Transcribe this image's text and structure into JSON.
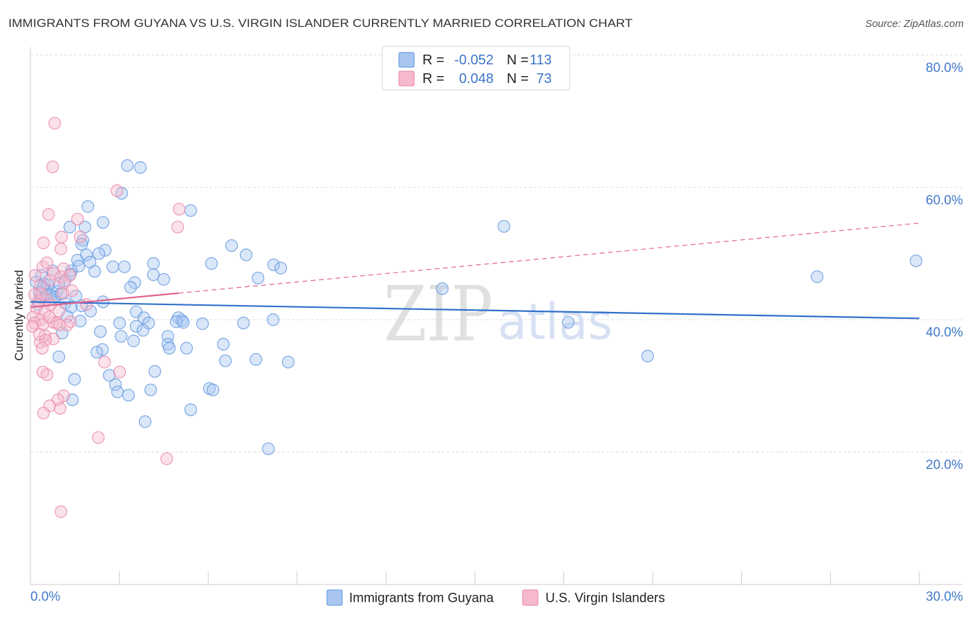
{
  "source": "Source: ZipAtlas.com",
  "watermark": {
    "zip": "ZIP",
    "atlas": "atlas"
  },
  "colors": {
    "guyana_fill": "#a8c6f0",
    "guyana_stroke": "#6d9ee0",
    "virgin_fill": "#f6b9cc",
    "virgin_stroke": "#ea8fb0",
    "trend_guyana": "#2f6fcc",
    "trend_virgin": "#e0628e",
    "tick_label": "#4178c8",
    "grid": "#dddddd",
    "axis": "#cccccc"
  },
  "chart_data": {
    "type": "scatter",
    "title": "IMMIGRANTS FROM GUYANA VS U.S. VIRGIN ISLANDER CURRENTLY MARRIED CORRELATION CHART",
    "ylabel": "Currently Married",
    "xlim": [
      0,
      31.45
    ],
    "ylim": [
      0,
      81.2
    ],
    "grid": true,
    "x_ticks": [
      {
        "value": 0,
        "label": "0.0%"
      },
      {
        "value": 30,
        "label": "30.0%"
      }
    ],
    "x_tick_marks": [
      0,
      3,
      6,
      9,
      12,
      15,
      18,
      21,
      24,
      27,
      30
    ],
    "y_ticks": [
      {
        "value": 80,
        "label": "80.0%"
      },
      {
        "value": 60,
        "label": "60.0%"
      },
      {
        "value": 40,
        "label": "40.0%"
      },
      {
        "value": 20,
        "label": "20.0%"
      }
    ],
    "legend_stats": [
      {
        "r_label": "R =",
        "r_value": "-0.052",
        "n_label": "N =",
        "n_value": "113"
      },
      {
        "r_label": "R =",
        "r_value": "0.048",
        "n_label": "N =",
        "n_value": "73"
      }
    ],
    "series": [
      {
        "name": "Immigrants from Guyana",
        "trend": {
          "x": [
            0,
            30
          ],
          "y": [
            42.7,
            40.2
          ]
        },
        "points": [
          [
            3.27,
            63.3
          ],
          [
            3.71,
            63.0
          ],
          [
            3.08,
            59.1
          ],
          [
            1.94,
            57.1
          ],
          [
            5.41,
            56.5
          ],
          [
            2.45,
            54.7
          ],
          [
            1.33,
            54.0
          ],
          [
            1.84,
            54.0
          ],
          [
            1.77,
            52.0
          ],
          [
            1.73,
            51.4
          ],
          [
            6.79,
            51.2
          ],
          [
            2.52,
            50.5
          ],
          [
            2.31,
            50.0
          ],
          [
            7.28,
            49.8
          ],
          [
            1.89,
            49.8
          ],
          [
            1.59,
            49.0
          ],
          [
            2.01,
            48.7
          ],
          [
            4.15,
            48.5
          ],
          [
            6.11,
            48.5
          ],
          [
            8.21,
            48.3
          ],
          [
            1.63,
            48.1
          ],
          [
            2.78,
            48.0
          ],
          [
            3.17,
            48.0
          ],
          [
            0.75,
            47.4
          ],
          [
            1.38,
            47.4
          ],
          [
            8.45,
            47.8
          ],
          [
            2.17,
            47.3
          ],
          [
            4.15,
            46.8
          ],
          [
            0.37,
            46.7
          ],
          [
            1.35,
            46.9
          ],
          [
            7.68,
            46.3
          ],
          [
            4.5,
            46.1
          ],
          [
            1.17,
            45.9
          ],
          [
            3.52,
            45.6
          ],
          [
            0.19,
            45.7
          ],
          [
            0.47,
            45.4
          ],
          [
            3.38,
            44.9
          ],
          [
            0.51,
            44.6
          ],
          [
            13.9,
            44.7
          ],
          [
            0.89,
            44.3
          ],
          [
            0.3,
            44.1
          ],
          [
            0.68,
            43.8
          ],
          [
            1.54,
            43.6
          ],
          [
            0.35,
            43.3
          ],
          [
            0.72,
            43.1
          ],
          [
            2.45,
            42.7
          ],
          [
            1.17,
            42.5
          ],
          [
            1.38,
            41.9
          ],
          [
            2.03,
            41.3
          ],
          [
            3.57,
            41.2
          ],
          [
            1.24,
            40.5
          ],
          [
            3.83,
            40.3
          ],
          [
            4.99,
            40.3
          ],
          [
            5.11,
            39.9
          ],
          [
            8.19,
            40.0
          ],
          [
            1.68,
            39.8
          ],
          [
            3.01,
            39.5
          ],
          [
            3.99,
            39.5
          ],
          [
            4.92,
            39.7
          ],
          [
            5.81,
            39.4
          ],
          [
            7.19,
            39.5
          ],
          [
            18.15,
            39.6
          ],
          [
            3.57,
            39.0
          ],
          [
            1.07,
            38.0
          ],
          [
            3.8,
            38.4
          ],
          [
            2.36,
            38.2
          ],
          [
            3.06,
            37.5
          ],
          [
            4.64,
            37.5
          ],
          [
            3.48,
            36.8
          ],
          [
            6.51,
            36.3
          ],
          [
            4.64,
            36.3
          ],
          [
            4.69,
            35.7
          ],
          [
            5.27,
            35.7
          ],
          [
            2.43,
            35.5
          ],
          [
            2.24,
            35.1
          ],
          [
            0.96,
            34.4
          ],
          [
            6.58,
            33.8
          ],
          [
            7.61,
            34.0
          ],
          [
            8.7,
            33.6
          ],
          [
            20.83,
            34.5
          ],
          [
            4.2,
            32.2
          ],
          [
            2.66,
            31.6
          ],
          [
            1.49,
            31.0
          ],
          [
            2.87,
            30.2
          ],
          [
            6.04,
            29.6
          ],
          [
            6.16,
            29.4
          ],
          [
            4.06,
            29.4
          ],
          [
            2.94,
            29.1
          ],
          [
            3.31,
            28.6
          ],
          [
            1.42,
            27.9
          ],
          [
            5.41,
            26.4
          ],
          [
            3.87,
            24.6
          ],
          [
            8.03,
            20.5
          ],
          [
            15.98,
            54.1
          ],
          [
            26.55,
            46.5
          ],
          [
            29.89,
            48.9
          ],
          [
            0.61,
            45.2
          ],
          [
            0.42,
            44.9
          ],
          [
            0.96,
            45.5
          ],
          [
            0.56,
            43.8
          ],
          [
            0.82,
            43.4
          ],
          [
            1.03,
            43.9
          ],
          [
            0.26,
            42.3
          ],
          [
            5.16,
            39.6
          ],
          [
            1.73,
            42.1
          ]
        ]
      },
      {
        "name": "U.S. Virgin Islanders",
        "trend": {
          "x": [
            0,
            30
          ],
          "y": [
            41.9,
            54.6
          ]
        },
        "trend_solid_to_x": 5.0,
        "points": [
          [
            0.82,
            69.7
          ],
          [
            0.75,
            63.1
          ],
          [
            2.92,
            59.5
          ],
          [
            5.02,
            56.7
          ],
          [
            0.61,
            55.9
          ],
          [
            1.59,
            55.2
          ],
          [
            4.97,
            54.0
          ],
          [
            0.44,
            51.6
          ],
          [
            1.68,
            52.5
          ],
          [
            1.03,
            50.7
          ],
          [
            1.05,
            52.5
          ],
          [
            0.42,
            48.0
          ],
          [
            1.12,
            47.7
          ],
          [
            1.33,
            46.7
          ],
          [
            0.16,
            46.7
          ],
          [
            1.03,
            46.5
          ],
          [
            0.65,
            46.0
          ],
          [
            1.14,
            45.6
          ],
          [
            0.33,
            45.1
          ],
          [
            1.4,
            44.4
          ],
          [
            0.14,
            43.8
          ],
          [
            0.54,
            43.1
          ],
          [
            1.89,
            42.3
          ],
          [
            0.21,
            41.8
          ],
          [
            0.49,
            41.2
          ],
          [
            0.09,
            40.4
          ],
          [
            0.33,
            40.0
          ],
          [
            0.77,
            39.6
          ],
          [
            0.14,
            39.5
          ],
          [
            0.42,
            39.3
          ],
          [
            0.07,
            39.0
          ],
          [
            0.89,
            39.5
          ],
          [
            0.49,
            37.6
          ],
          [
            0.77,
            37.1
          ],
          [
            0.33,
            36.6
          ],
          [
            0.51,
            36.9
          ],
          [
            0.4,
            35.7
          ],
          [
            2.5,
            33.6
          ],
          [
            0.42,
            32.1
          ],
          [
            3.01,
            32.1
          ],
          [
            0.56,
            31.7
          ],
          [
            1.12,
            28.5
          ],
          [
            0.93,
            27.9
          ],
          [
            0.65,
            27.0
          ],
          [
            1.0,
            26.6
          ],
          [
            0.44,
            25.9
          ],
          [
            2.29,
            22.2
          ],
          [
            4.6,
            19.0
          ],
          [
            1.03,
            11.0
          ],
          [
            0.28,
            42.8
          ],
          [
            0.63,
            40.4
          ],
          [
            1.35,
            39.7
          ],
          [
            1.1,
            44.0
          ],
          [
            0.79,
            47.0
          ],
          [
            0.56,
            48.6
          ],
          [
            0.3,
            37.8
          ],
          [
            1.24,
            39.2
          ],
          [
            0.37,
            43.9
          ],
          [
            0.68,
            42.3
          ],
          [
            0.96,
            41.3
          ],
          [
            0.98,
            39.2
          ]
        ]
      }
    ]
  }
}
